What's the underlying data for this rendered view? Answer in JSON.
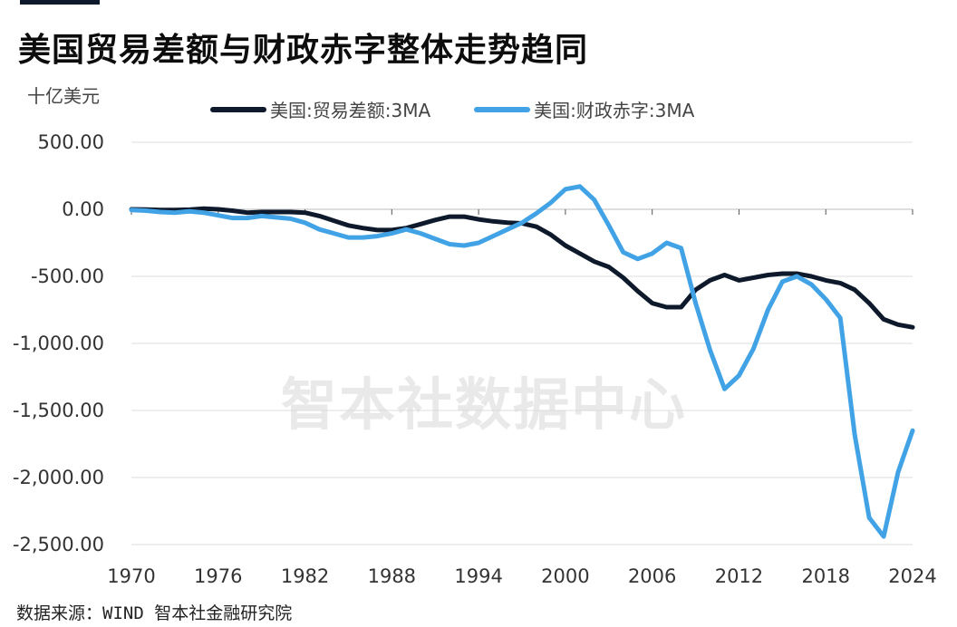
{
  "title": "美国贸易差额与财政赤字整体走势趋同",
  "unit_label": "十亿美元",
  "source": "数据来源：WIND 智本社金融研究院",
  "watermark": "智本社数据中心",
  "colors": {
    "trade": "#0e1a2b",
    "fiscal": "#41a3e6",
    "grid": "#dcdcdc",
    "topbar": "#0e1a2b"
  },
  "chart_data": {
    "type": "line",
    "title": "美国贸易差额与财政赤字整体走势趋同",
    "ylabel": "十亿美元",
    "xlabel": "",
    "xlim": [
      1970,
      2024
    ],
    "ylim": [
      -2500,
      500
    ],
    "yticks": [
      500,
      0,
      -500,
      -1000,
      -1500,
      -2000,
      -2500
    ],
    "ytick_labels": [
      "500.00",
      "0.00",
      "-500.00",
      "-1,000.00",
      "-1,500.00",
      "-2,000.00",
      "-2,500.00"
    ],
    "xticks": [
      1970,
      1976,
      1982,
      1988,
      1994,
      2000,
      2006,
      2012,
      2018,
      2024
    ],
    "xtick_labels": [
      "1970",
      "1976",
      "1982",
      "1988",
      "1994",
      "2000",
      "2006",
      "2012",
      "2018",
      "2024"
    ],
    "legend_position": "top",
    "grid": "horizontal",
    "series": [
      {
        "name": "美国:贸易差额:3MA",
        "color": "#0e1a2b",
        "x": [
          1970,
          1971,
          1972,
          1973,
          1974,
          1975,
          1976,
          1977,
          1978,
          1979,
          1980,
          1981,
          1982,
          1983,
          1984,
          1985,
          1986,
          1987,
          1988,
          1989,
          1990,
          1991,
          1992,
          1993,
          1994,
          1995,
          1996,
          1997,
          1998,
          1999,
          2000,
          2001,
          2002,
          2003,
          2004,
          2005,
          2006,
          2007,
          2008,
          2009,
          2010,
          2011,
          2012,
          2013,
          2014,
          2015,
          2016,
          2017,
          2018,
          2019,
          2020,
          2021,
          2022,
          2023,
          2024
        ],
        "y": [
          0,
          -2,
          -5,
          -5,
          -3,
          5,
          0,
          -10,
          -25,
          -20,
          -20,
          -20,
          -25,
          -50,
          -85,
          -120,
          -140,
          -155,
          -155,
          -140,
          -110,
          -80,
          -55,
          -55,
          -75,
          -90,
          -100,
          -105,
          -130,
          -190,
          -270,
          -330,
          -390,
          -430,
          -510,
          -610,
          -700,
          -730,
          -730,
          -600,
          -530,
          -490,
          -530,
          -510,
          -490,
          -480,
          -480,
          -500,
          -530,
          -550,
          -600,
          -700,
          -820,
          -860,
          -880
        ]
      },
      {
        "name": "美国:财政赤字:3MA",
        "color": "#41a3e6",
        "x": [
          1970,
          1971,
          1972,
          1973,
          1974,
          1975,
          1976,
          1977,
          1978,
          1979,
          1980,
          1981,
          1982,
          1983,
          1984,
          1985,
          1986,
          1987,
          1988,
          1989,
          1990,
          1991,
          1992,
          1993,
          1994,
          1995,
          1996,
          1997,
          1998,
          1999,
          2000,
          2001,
          2002,
          2003,
          2004,
          2005,
          2006,
          2007,
          2008,
          2009,
          2010,
          2011,
          2012,
          2013,
          2014,
          2015,
          2016,
          2017,
          2018,
          2019,
          2020,
          2021,
          2022,
          2023,
          2024
        ],
        "y": [
          -5,
          -10,
          -20,
          -25,
          -15,
          -25,
          -45,
          -65,
          -65,
          -50,
          -60,
          -70,
          -100,
          -150,
          -180,
          -210,
          -210,
          -200,
          -180,
          -150,
          -180,
          -220,
          -260,
          -270,
          -250,
          -200,
          -150,
          -100,
          -30,
          50,
          150,
          170,
          70,
          -120,
          -320,
          -370,
          -330,
          -250,
          -290,
          -700,
          -1050,
          -1340,
          -1240,
          -1040,
          -750,
          -540,
          -500,
          -560,
          -670,
          -810,
          -1680,
          -2300,
          -2440,
          -1960,
          -1650
        ]
      }
    ]
  }
}
